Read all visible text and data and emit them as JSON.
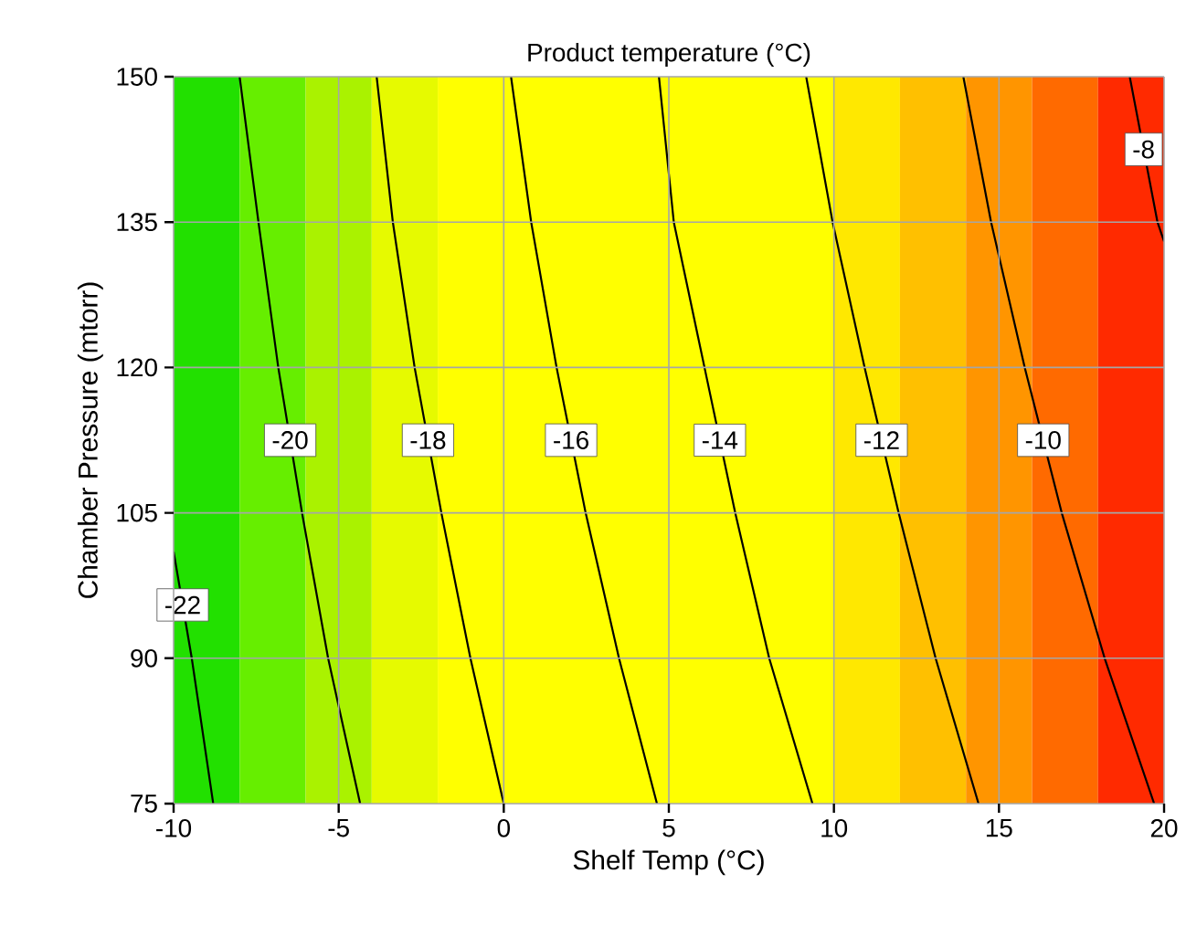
{
  "chart_data": {
    "type": "line",
    "title": "Product temperature (°C)",
    "xlabel": "Shelf Temp (°C)",
    "ylabel": "Chamber Pressure (mtorr)",
    "xlim": [
      -10,
      20
    ],
    "ylim": [
      75,
      150
    ],
    "xticks": [
      -10,
      -5,
      0,
      5,
      10,
      15,
      20
    ],
    "yticks": [
      75,
      90,
      105,
      120,
      135,
      150
    ],
    "grid": true,
    "marker": "none",
    "line_style": "solid",
    "bands": [
      {
        "axis": "x",
        "from": -10,
        "to": -8,
        "color": "#22e000"
      },
      {
        "axis": "x",
        "from": -8,
        "to": -6,
        "color": "#66ee00"
      },
      {
        "axis": "x",
        "from": -6,
        "to": -4,
        "color": "#aaf200"
      },
      {
        "axis": "x",
        "from": -4,
        "to": -2,
        "color": "#e6fa00"
      },
      {
        "axis": "x",
        "from": -2,
        "to": 10,
        "color": "#ffff00"
      },
      {
        "axis": "x",
        "from": 10,
        "to": 12,
        "color": "#ffe800"
      },
      {
        "axis": "x",
        "from": 12,
        "to": 14,
        "color": "#ffc000"
      },
      {
        "axis": "x",
        "from": 14,
        "to": 16,
        "color": "#ff9500"
      },
      {
        "axis": "x",
        "from": 16,
        "to": 18,
        "color": "#ff6a00"
      },
      {
        "axis": "x",
        "from": 18,
        "to": 20,
        "color": "#ff2a00"
      }
    ],
    "series": [
      {
        "name": "-22",
        "color": "#000000",
        "x": [
          -10,
          -9.45,
          -8.8
        ],
        "values": [
          101,
          90,
          75
        ]
      },
      {
        "name": "-20",
        "color": "#000000",
        "x": [
          -8.0,
          -7.43,
          -6.83,
          -6.11,
          -5.32,
          -4.35
        ],
        "values": [
          150,
          135,
          120,
          105,
          90,
          75
        ]
      },
      {
        "name": "-18",
        "color": "#000000",
        "x": [
          -3.85,
          -3.36,
          -2.7,
          -1.89,
          -1.01,
          0.0
        ],
        "values": [
          150,
          135,
          120,
          105,
          90,
          75
        ]
      },
      {
        "name": "-16",
        "color": "#000000",
        "x": [
          0.22,
          0.83,
          1.6,
          2.48,
          3.49,
          4.64
        ],
        "values": [
          150,
          135,
          120,
          105,
          90,
          75
        ]
      },
      {
        "name": "-14",
        "color": "#000000",
        "x": [
          4.7,
          5.15,
          6.08,
          7.01,
          8.04,
          9.35
        ],
        "values": [
          150,
          135,
          120,
          105,
          90,
          75
        ]
      },
      {
        "name": "-12",
        "color": "#000000",
        "x": [
          9.16,
          9.96,
          10.93,
          11.96,
          13.08,
          14.38
        ],
        "values": [
          150,
          135,
          120,
          105,
          90,
          75
        ]
      },
      {
        "name": "-10",
        "color": "#000000",
        "x": [
          13.92,
          14.76,
          15.78,
          16.9,
          18.2,
          19.7
        ],
        "values": [
          150,
          135,
          120,
          105,
          90,
          75
        ]
      },
      {
        "name": "-8",
        "color": "#000000",
        "x": [
          18.96,
          19.8,
          20
        ],
        "values": [
          150,
          135,
          133
        ]
      }
    ]
  }
}
